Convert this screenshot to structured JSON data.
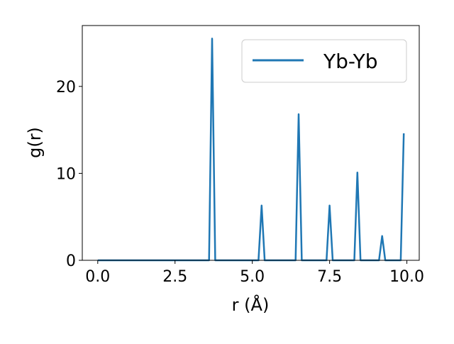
{
  "chart_data": {
    "type": "line",
    "title": "",
    "xlabel": "r (Å)",
    "ylabel": "g(r)",
    "xlim": [
      -0.5,
      10.4
    ],
    "ylim": [
      0,
      27
    ],
    "xticks": [
      0.0,
      2.5,
      5.0,
      7.5,
      10.0
    ],
    "xtick_labels": [
      "0.0",
      "2.5",
      "5.0",
      "7.5",
      "10.0"
    ],
    "yticks": [
      0,
      10,
      20
    ],
    "ytick_labels": [
      "0",
      "10",
      "20"
    ],
    "grid": false,
    "legend": {
      "location": "upper right",
      "entries": [
        "Yb-Yb"
      ]
    },
    "series": [
      {
        "name": "Yb-Yb",
        "color": "#1f77b4",
        "x": [
          0.0,
          3.6,
          3.7,
          3.8,
          5.2,
          5.3,
          5.4,
          6.4,
          6.5,
          6.6,
          7.4,
          7.5,
          7.6,
          8.3,
          8.4,
          8.5,
          9.1,
          9.2,
          9.3,
          9.8,
          9.9
        ],
        "y": [
          0,
          0,
          25.5,
          0,
          0,
          6.3,
          0,
          0,
          16.8,
          0,
          0,
          6.3,
          0,
          0,
          10.1,
          0,
          0,
          2.8,
          0,
          0,
          14.6
        ]
      }
    ]
  }
}
